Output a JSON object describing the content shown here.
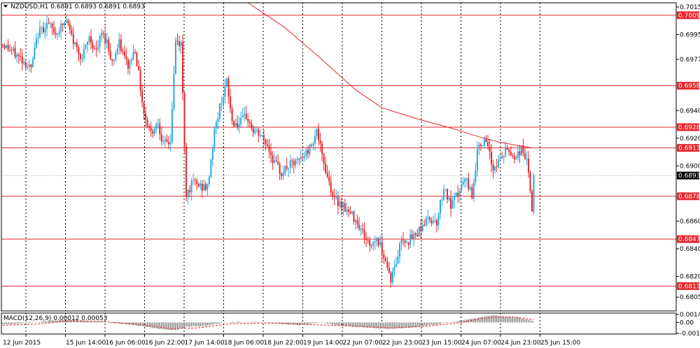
{
  "header": {
    "symbol_line": "NZDUSD,H1  0.6891 0.6893 0.6891 0.6893",
    "macd_line": "MACD(12,26,9) 0.00012 0.00053"
  },
  "colors": {
    "bull": "#29a8e0",
    "bear": "#e4262a",
    "ma": "#e4262a",
    "level": "#e4262a",
    "current_label": "#000000",
    "hist": "#808080",
    "signal": "#e4262a"
  },
  "chart_data": [
    {
      "type": "candlestick",
      "title": "NZDUSD,H1",
      "ylim": [
        0.6795,
        0.7018
      ],
      "y_ticks": [
        "0.7015",
        "0.6995",
        "0.6977",
        "0.6940",
        "0.6920",
        "0.6900",
        "0.6860",
        "0.6840",
        "0.6820",
        "0.6805"
      ],
      "x_ticks": [
        "12 Jun 2015",
        "15 Jun 14:00",
        "16 Jun 06:00",
        "16 Jun 22:00",
        "17 Jun 14:00",
        "18 Jun 06:00",
        "18 Jun 22:00",
        "19 Jun 14:00",
        "22 Jun 07:00",
        "22 Jun 23:00",
        "23 Jun 15:00",
        "24 Jun 07:00",
        "24 Jun 23:00",
        "25 Jun 15:00"
      ],
      "levels": [
        "0.7009",
        "0.6958",
        "0.6928",
        "0.6913",
        "0.6878",
        "0.6847",
        "0.6813"
      ],
      "current_price": "0.6893",
      "path": [
        [
          0,
          0.6988
        ],
        [
          10,
          0.6978
        ],
        [
          16,
          0.697
        ],
        [
          20,
          0.6996
        ],
        [
          25,
          0.7003
        ],
        [
          30,
          0.6996
        ],
        [
          36,
          0.7005
        ],
        [
          40,
          0.699
        ],
        [
          45,
          0.6978
        ],
        [
          49,
          0.6993
        ],
        [
          53,
          0.6982
        ],
        [
          56,
          0.6996
        ],
        [
          59,
          0.699
        ],
        [
          62,
          0.6975
        ],
        [
          66,
          0.6988
        ],
        [
          71,
          0.6972
        ],
        [
          75,
          0.6985
        ],
        [
          80,
          0.6938
        ],
        [
          84,
          0.6924
        ],
        [
          88,
          0.6932
        ],
        [
          91,
          0.6915
        ],
        [
          95,
          0.6918
        ],
        [
          98,
          0.699
        ],
        [
          101,
          0.6988
        ],
        [
          104,
          0.688
        ],
        [
          108,
          0.6888
        ],
        [
          112,
          0.6885
        ],
        [
          116,
          0.6884
        ],
        [
          120,
          0.6925
        ],
        [
          124,
          0.6948
        ],
        [
          127,
          0.696
        ],
        [
          130,
          0.6932
        ],
        [
          134,
          0.693
        ],
        [
          138,
          0.6936
        ],
        [
          142,
          0.6925
        ],
        [
          146,
          0.6922
        ],
        [
          150,
          0.6915
        ],
        [
          154,
          0.6902
        ],
        [
          158,
          0.6895
        ],
        [
          162,
          0.69
        ],
        [
          166,
          0.6902
        ],
        [
          170,
          0.6906
        ],
        [
          174,
          0.6913
        ],
        [
          178,
          0.6926
        ],
        [
          181,
          0.6906
        ],
        [
          184,
          0.6893
        ],
        [
          188,
          0.6875
        ],
        [
          192,
          0.6873
        ],
        [
          196,
          0.6866
        ],
        [
          200,
          0.6862
        ],
        [
          204,
          0.6852
        ],
        [
          208,
          0.6842
        ],
        [
          212,
          0.6848
        ],
        [
          216,
          0.6836
        ],
        [
          220,
          0.6818
        ],
        [
          223,
          0.683
        ],
        [
          226,
          0.6848
        ],
        [
          230,
          0.6846
        ],
        [
          234,
          0.685
        ],
        [
          238,
          0.6858
        ],
        [
          242,
          0.6862
        ],
        [
          246,
          0.686
        ],
        [
          250,
          0.6885
        ],
        [
          254,
          0.687
        ],
        [
          258,
          0.688
        ],
        [
          262,
          0.689
        ],
        [
          266,
          0.688
        ],
        [
          270,
          0.6918
        ],
        [
          274,
          0.6916
        ],
        [
          278,
          0.6898
        ],
        [
          282,
          0.6905
        ],
        [
          286,
          0.6912
        ],
        [
          290,
          0.6906
        ],
        [
          294,
          0.6912
        ],
        [
          297,
          0.6905
        ],
        [
          300,
          0.6868
        ],
        [
          301,
          0.6893
        ]
      ],
      "ma_path": [
        [
          139,
          0.7018
        ],
        [
          160,
          0.7
        ],
        [
          180,
          0.6978
        ],
        [
          200,
          0.6955
        ],
        [
          215,
          0.6942
        ],
        [
          235,
          0.6934
        ],
        [
          255,
          0.6927
        ],
        [
          270,
          0.6921
        ],
        [
          282,
          0.6917
        ],
        [
          300,
          0.6913
        ]
      ]
    },
    {
      "type": "histogram",
      "title": "MACD(12,26,9)",
      "ylim": [
        -0.0021,
        0.0017
      ],
      "y_ticks": [
        "0.00143",
        "0.00",
        "-0.00198"
      ],
      "hist_path": [
        [
          0,
          -0.0004
        ],
        [
          15,
          -0.0001
        ],
        [
          30,
          0.0004
        ],
        [
          40,
          0.0004
        ],
        [
          55,
          0.0001
        ],
        [
          65,
          -0.0002
        ],
        [
          75,
          -0.0005
        ],
        [
          90,
          -0.0012
        ],
        [
          98,
          -0.0014
        ],
        [
          104,
          -0.0008
        ],
        [
          115,
          -0.0006
        ],
        [
          122,
          -0.0002
        ],
        [
          130,
          0.0001
        ],
        [
          145,
          0.0001
        ],
        [
          158,
          -0.0003
        ],
        [
          170,
          -0.0005
        ],
        [
          180,
          0.0
        ],
        [
          192,
          -0.0006
        ],
        [
          205,
          -0.0009
        ],
        [
          218,
          -0.0012
        ],
        [
          232,
          -0.0009
        ],
        [
          245,
          -0.0004
        ],
        [
          255,
          0.0001
        ],
        [
          268,
          0.0008
        ],
        [
          278,
          0.0013
        ],
        [
          292,
          0.0009
        ],
        [
          301,
          0.0002
        ]
      ],
      "signal_path": [
        [
          0,
          -0.0005
        ],
        [
          20,
          -0.0003
        ],
        [
          38,
          0.0003
        ],
        [
          55,
          0.0002
        ],
        [
          75,
          -0.0003
        ],
        [
          95,
          -0.0011
        ],
        [
          110,
          -0.001
        ],
        [
          130,
          -0.0002
        ],
        [
          150,
          -0.0001
        ],
        [
          175,
          -0.0004
        ],
        [
          195,
          -0.0006
        ],
        [
          220,
          -0.001
        ],
        [
          240,
          -0.0007
        ],
        [
          258,
          -0.0001
        ],
        [
          275,
          0.0009
        ],
        [
          290,
          0.001
        ],
        [
          301,
          0.0005
        ]
      ]
    }
  ]
}
